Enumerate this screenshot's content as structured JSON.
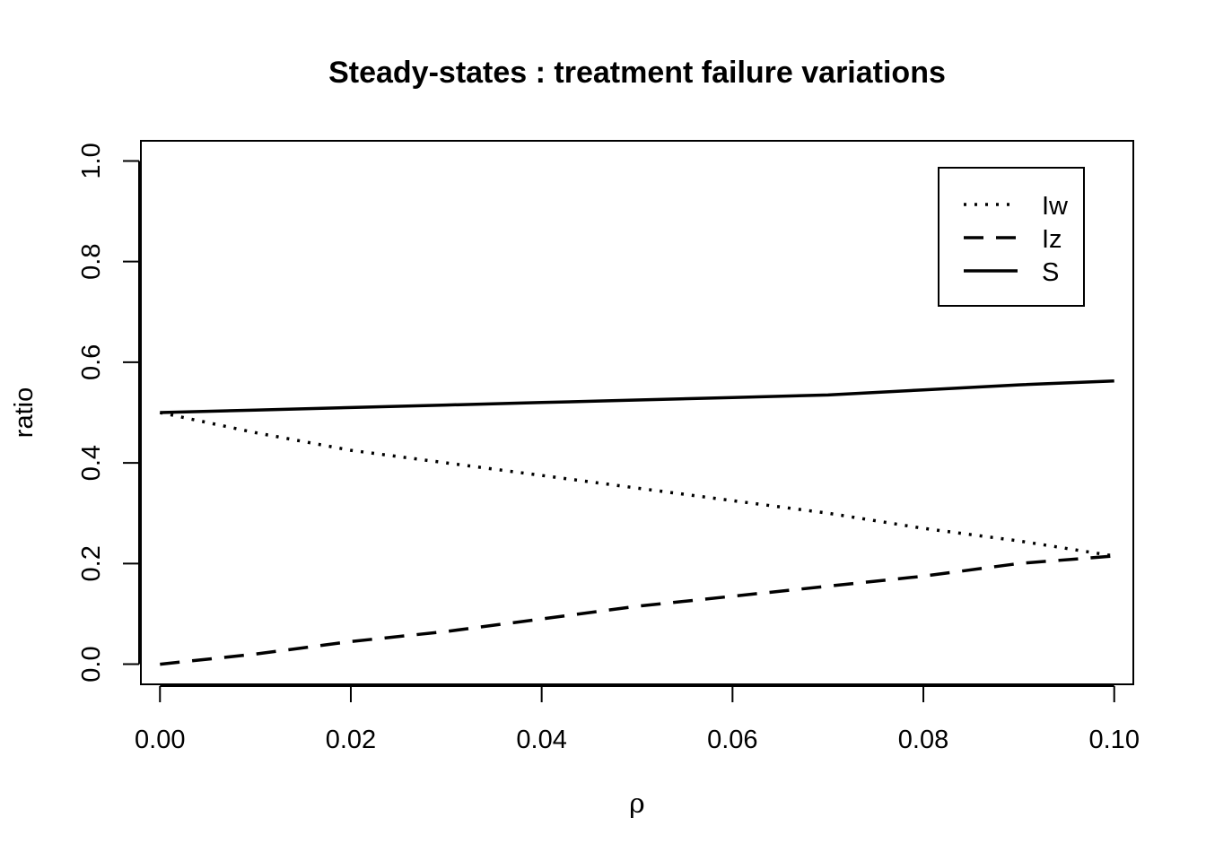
{
  "chart_data": {
    "type": "line",
    "title": "Steady-states : treatment failure variations",
    "xlabel": "ρ",
    "ylabel": "ratio",
    "xlim": [
      -0.002,
      0.102
    ],
    "ylim": [
      -0.04,
      1.04
    ],
    "x_ticks": [
      0.0,
      0.02,
      0.04,
      0.06,
      0.08,
      0.1
    ],
    "x_tick_labels": [
      "0.00",
      "0.02",
      "0.04",
      "0.06",
      "0.08",
      "0.10"
    ],
    "y_ticks": [
      0.0,
      0.2,
      0.4,
      0.6,
      0.8,
      1.0
    ],
    "y_tick_labels": [
      "0.0",
      "0.2",
      "0.4",
      "0.6",
      "0.8",
      "1.0"
    ],
    "grid": false,
    "legend_position": "top-right",
    "x": [
      0.0,
      0.01,
      0.02,
      0.03,
      0.04,
      0.05,
      0.06,
      0.07,
      0.08,
      0.09,
      0.1
    ],
    "series": [
      {
        "name": "Iw",
        "line_style": "dotted",
        "color": "#000000",
        "values": [
          0.5,
          0.46,
          0.425,
          0.4,
          0.375,
          0.35,
          0.325,
          0.3,
          0.27,
          0.245,
          0.215
        ]
      },
      {
        "name": "Iz",
        "line_style": "dashed",
        "color": "#000000",
        "values": [
          0.0,
          0.02,
          0.045,
          0.065,
          0.09,
          0.115,
          0.135,
          0.155,
          0.175,
          0.2,
          0.215
        ]
      },
      {
        "name": "S",
        "line_style": "solid",
        "color": "#000000",
        "values": [
          0.5,
          0.505,
          0.51,
          0.515,
          0.52,
          0.525,
          0.53,
          0.535,
          0.545,
          0.555,
          0.563
        ]
      }
    ]
  }
}
